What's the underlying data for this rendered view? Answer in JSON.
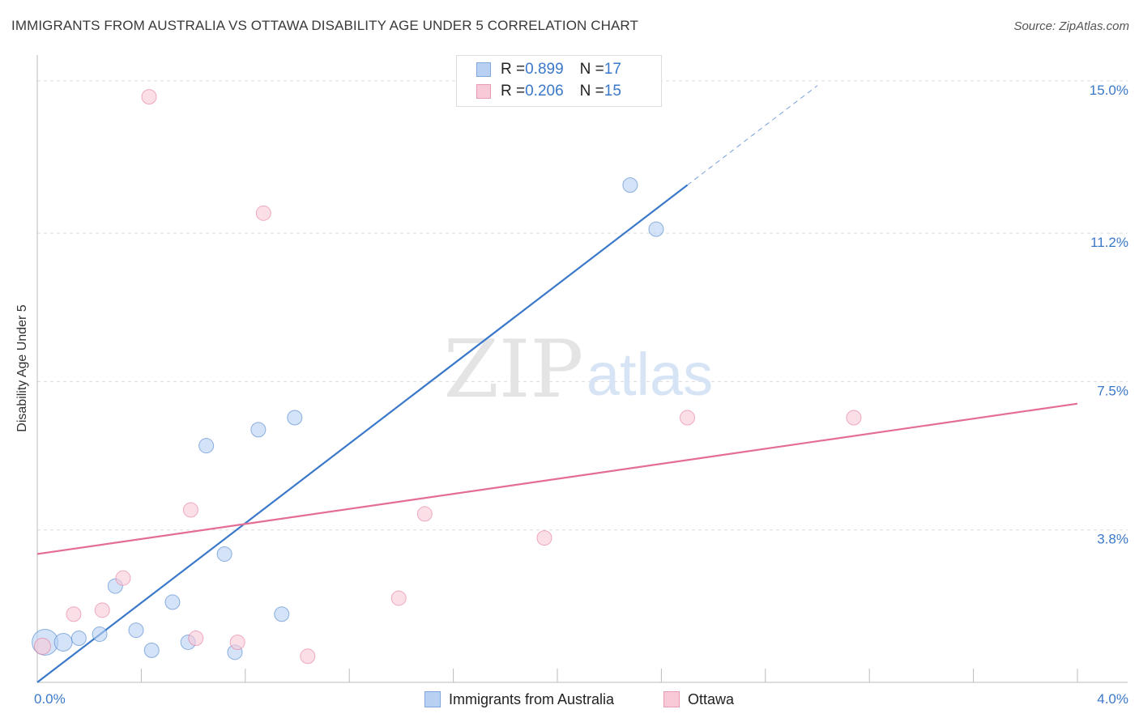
{
  "header": {
    "title": "IMMIGRANTS FROM AUSTRALIA VS OTTAWA DISABILITY AGE UNDER 5 CORRELATION CHART",
    "source": "Source: ZipAtlas.com"
  },
  "watermark": {
    "zip": "ZIP",
    "atlas": "atlas"
  },
  "legend": {
    "r_label": "R = ",
    "n_label": "N = ",
    "rows": [
      {
        "r": "0.899",
        "n": "17",
        "color": "#a9c8ef"
      },
      {
        "r": "0.206",
        "n": "15",
        "color": "#f4b6c8"
      }
    ]
  },
  "chart_data": {
    "type": "scatter",
    "title": "IMMIGRANTS FROM AUSTRALIA VS OTTAWA DISABILITY AGE UNDER 5 CORRELATION CHART",
    "xlabel": "",
    "ylabel": "Disability Age Under 5",
    "xlim": [
      0,
      4.0
    ],
    "ylim": [
      0,
      15.4
    ],
    "x_tick_labels": [
      "0.0%",
      "4.0%"
    ],
    "y_ticks": [
      3.8,
      7.5,
      11.2,
      15.0
    ],
    "y_tick_labels": [
      "3.8%",
      "7.5%",
      "11.2%",
      "15.0%"
    ],
    "series": [
      {
        "name": "Immigrants from Australia",
        "color": "#3a78c9",
        "fill": "#b8d1f2",
        "points": [
          [
            0.03,
            1.0,
            16
          ],
          [
            0.1,
            1.0,
            11
          ],
          [
            0.16,
            1.1,
            9
          ],
          [
            0.24,
            1.2,
            9
          ],
          [
            0.3,
            2.4,
            9
          ],
          [
            0.38,
            1.3,
            9
          ],
          [
            0.44,
            0.8,
            9
          ],
          [
            0.52,
            2.0,
            9
          ],
          [
            0.58,
            1.0,
            9
          ],
          [
            0.65,
            5.9,
            9
          ],
          [
            0.72,
            3.2,
            9
          ],
          [
            0.76,
            0.75,
            9
          ],
          [
            0.85,
            6.3,
            9
          ],
          [
            0.94,
            1.7,
            9
          ],
          [
            0.99,
            6.6,
            9
          ],
          [
            2.28,
            12.4,
            9
          ],
          [
            2.38,
            11.3,
            9
          ]
        ],
        "trend": {
          "x0": 0.0,
          "y0": 0.0,
          "x1": 2.5,
          "y1": 12.4,
          "dash_to_x": 3.0
        }
      },
      {
        "name": "Ottawa",
        "color": "#e46d94",
        "fill": "#f8c9d7",
        "points": [
          [
            0.02,
            0.9,
            10
          ],
          [
            0.14,
            1.7,
            9
          ],
          [
            0.25,
            1.8,
            9
          ],
          [
            0.33,
            2.6,
            9
          ],
          [
            0.43,
            14.6,
            9
          ],
          [
            0.59,
            4.3,
            9
          ],
          [
            0.61,
            1.1,
            9
          ],
          [
            0.77,
            1.0,
            9
          ],
          [
            0.87,
            11.7,
            9
          ],
          [
            1.04,
            0.65,
            9
          ],
          [
            1.39,
            2.1,
            9
          ],
          [
            1.49,
            4.2,
            9
          ],
          [
            1.95,
            3.6,
            9
          ],
          [
            2.5,
            6.6,
            9
          ],
          [
            3.14,
            6.6,
            9
          ]
        ],
        "trend": {
          "x0": 0.0,
          "y0": 3.2,
          "x1": 4.0,
          "y1": 6.95
        }
      }
    ]
  }
}
